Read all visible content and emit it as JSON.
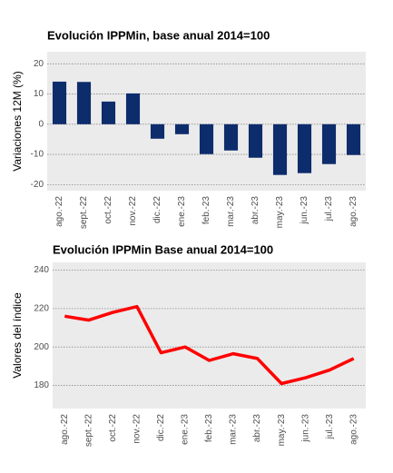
{
  "chart_data": [
    {
      "type": "bar",
      "title": "Evolución IPPMin, base anual 2014=100",
      "y_label": "Variaciones 12M (%)",
      "categories": [
        "ago.-22",
        "sept.-22",
        "oct.-22",
        "nov.-22",
        "dic.-22",
        "ene.-23",
        "feb.-23",
        "mar.-23",
        "abr.-23",
        "may.-23",
        "jun.-23",
        "jul.-23",
        "ago.-23"
      ],
      "values": [
        14.1,
        14,
        7.5,
        10.2,
        -4.8,
        -3.3,
        -9.9,
        -8.7,
        -11.1,
        -16.8,
        -16.2,
        -13.2,
        -10.2
      ],
      "color": "#0d2c6c",
      "ylim": [
        -22,
        24
      ],
      "yticks": [
        -20,
        -10,
        0,
        10,
        20
      ],
      "grid": true
    },
    {
      "type": "line",
      "title": "Evolución IPPMin Base anual 2014=100",
      "y_label": "Valores del índice",
      "categories": [
        "ago.-22",
        "sept.-22",
        "oct.-22",
        "nov.-22",
        "dic.-22",
        "ene.-23",
        "feb.-23",
        "mar.-23",
        "abr.-23",
        "may.-23",
        "jun.-23",
        "jul.-23",
        "ago.-23"
      ],
      "values": [
        216,
        214,
        218,
        221,
        197,
        200,
        193,
        196.5,
        194,
        181,
        184,
        188,
        194
      ],
      "color": "#ff0000",
      "ylim": [
        168,
        244
      ],
      "yticks": [
        180,
        200,
        220,
        240
      ],
      "grid": true
    }
  ]
}
